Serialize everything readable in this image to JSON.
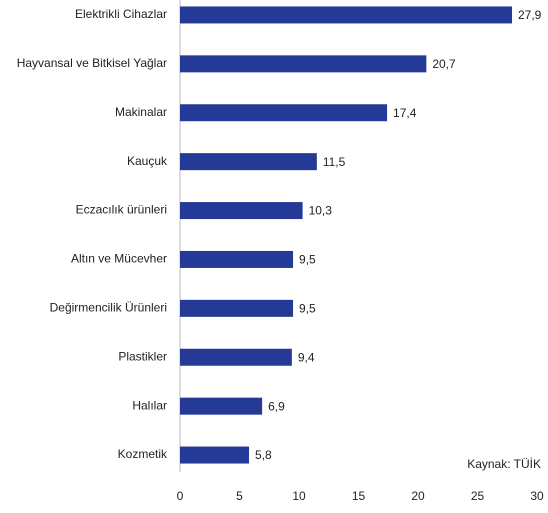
{
  "chart_data": {
    "type": "hbar",
    "categories": [
      "Elektrikli Cihazlar",
      "Hayvansal ve Bitkisel Yağlar",
      "Makinalar",
      "Kauçuk",
      "Eczacılık ürünleri",
      "Altın ve Mücevher",
      "Değirmencilik Ürünleri",
      "Plastikler",
      "Halılar",
      "Kozmetik"
    ],
    "values": [
      27.9,
      20.7,
      17.4,
      11.5,
      10.3,
      9.5,
      9.5,
      9.4,
      6.9,
      5.8
    ],
    "value_labels": [
      "27,9",
      "20,7",
      "17,4",
      "11,5",
      "10,3",
      "9,5",
      "9,5",
      "9,4",
      "6,9",
      "5,8"
    ],
    "color": "#253a96",
    "xlim": [
      0,
      30
    ],
    "xticks": [
      0,
      5,
      10,
      15,
      20,
      25,
      30
    ],
    "grid": false,
    "annotation": "Kaynak: TÜİK"
  }
}
